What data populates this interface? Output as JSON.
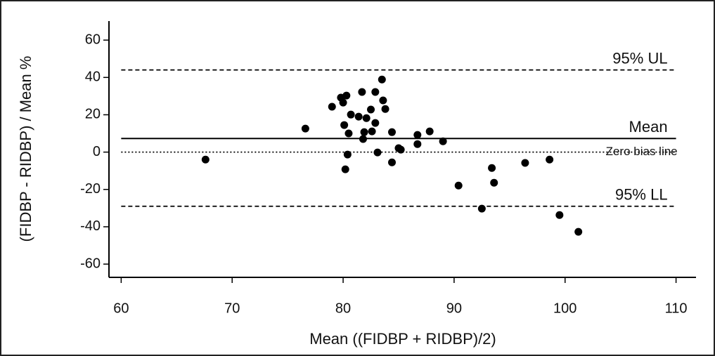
{
  "chart_data": {
    "type": "scatter",
    "x_label": "Mean ((FIDBP + RIDBP)/2)",
    "y_label": "(FIDBP - RIDBP) / Mean %",
    "xlim": [
      58.9,
      111.8
    ],
    "ylim": [
      -67.1,
      70.2
    ],
    "xticks": [
      60,
      70,
      80,
      90,
      100,
      110
    ],
    "yticks": [
      -60,
      -40,
      -20,
      0,
      20,
      40,
      60
    ],
    "color": "#000000",
    "x": [
      67.6,
      76.6,
      79.0,
      79.8,
      80.0,
      80.3,
      80.1,
      80.5,
      80.7,
      80.4,
      80.2,
      81.4,
      81.7,
      81.9,
      81.8,
      82.1,
      82.5,
      82.6,
      82.9,
      82.9,
      83.1,
      83.5,
      83.6,
      83.8,
      84.4,
      84.4,
      85.0,
      85.2,
      86.7,
      86.7,
      87.8,
      89.0,
      90.4,
      92.5,
      93.4,
      93.6,
      96.4,
      98.6,
      99.5,
      101.2
    ],
    "values": [
      -4.0,
      12.6,
      24.3,
      29.2,
      26.5,
      30.3,
      14.5,
      10.0,
      20.1,
      -1.3,
      -9.2,
      19.0,
      32.2,
      10.7,
      7.0,
      18.2,
      22.8,
      11.1,
      32.2,
      15.6,
      -0.2,
      38.9,
      27.7,
      23.1,
      10.7,
      -5.5,
      2.1,
      1.3,
      9.2,
      4.3,
      11.1,
      5.8,
      -17.9,
      -30.3,
      -8.5,
      -16.4,
      -5.8,
      -4.0,
      -33.7,
      -42.7
    ],
    "lines": [
      {
        "name": "95% UL",
        "value": 44.0,
        "style": "dashed"
      },
      {
        "name": "Mean",
        "value": 7.3,
        "style": "solid"
      },
      {
        "name": "Zero bias line",
        "value": 0,
        "style": "dotted"
      },
      {
        "name": "95% LL",
        "value": -29.0,
        "style": "dashed"
      }
    ]
  }
}
